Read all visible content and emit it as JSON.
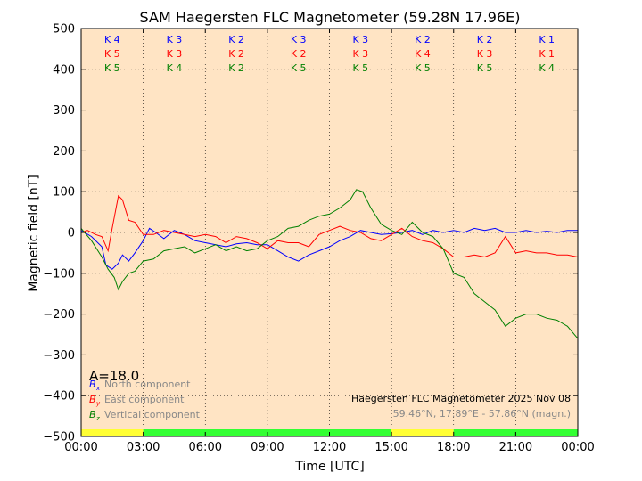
{
  "chart_data": {
    "type": "line",
    "title": "SAM Haegersten FLC Magnetometer (59.28N 17.96E)",
    "xlabel": "Time [UTC]",
    "ylabel": "Magnetic field [nT]",
    "xlim": [
      0,
      24
    ],
    "ylim": [
      -500,
      500
    ],
    "grid": true,
    "x_ticks": [
      0,
      3,
      6,
      9,
      12,
      15,
      18,
      21,
      24
    ],
    "x_tick_labels": [
      "00:00",
      "03:00",
      "06:00",
      "09:00",
      "12:00",
      "15:00",
      "18:00",
      "21:00",
      "00:00"
    ],
    "y_ticks": [
      -500,
      -400,
      -300,
      -200,
      -100,
      0,
      100,
      200,
      300,
      400,
      500
    ],
    "y_tick_labels": [
      "−500",
      "−400",
      "−300",
      "−200",
      "−100",
      "0",
      "100",
      "200",
      "300",
      "400",
      "500"
    ],
    "k_indices": [
      {
        "start": 0,
        "north": "K 4",
        "east": "K 5",
        "vertical": "K 5"
      },
      {
        "start": 3,
        "north": "K 3",
        "east": "K 3",
        "vertical": "K 4"
      },
      {
        "start": 6,
        "north": "K 2",
        "east": "K 2",
        "vertical": "K 2"
      },
      {
        "start": 9,
        "north": "K 3",
        "east": "K 2",
        "vertical": "K 5"
      },
      {
        "start": 12,
        "north": "K 3",
        "east": "K 3",
        "vertical": "K 5"
      },
      {
        "start": 15,
        "north": "K 2",
        "east": "K 4",
        "vertical": "K 5"
      },
      {
        "start": 18,
        "north": "K 2",
        "east": "K 3",
        "vertical": "K 5"
      },
      {
        "start": 21,
        "north": "K 1",
        "east": "K 1",
        "vertical": "K 4"
      }
    ],
    "a_index_label": "A=18.0",
    "activity_bar": [
      {
        "from": 0,
        "to": 3,
        "color": "#ffff33"
      },
      {
        "from": 3,
        "to": 15,
        "color": "#33ff33"
      },
      {
        "from": 15,
        "to": 18,
        "color": "#ffff33"
      },
      {
        "from": 18,
        "to": 24,
        "color": "#33ff33"
      }
    ],
    "legend": {
      "position": "bottom-left",
      "entries": [
        {
          "symbol": "B",
          "subscript": "x",
          "label": "North component",
          "color": "#0000ff"
        },
        {
          "symbol": "B",
          "subscript": "y",
          "label": "East component",
          "color": "#ff0000"
        },
        {
          "symbol": "B",
          "subscript": "z",
          "label": "Vertical component",
          "color": "#008000"
        }
      ]
    },
    "annotation": {
      "line1": "Haegersten FLC Magnetometer 2025 Nov 08",
      "line2": "59.46°N, 17.89°E - 57.86°N (magn.)"
    },
    "series": [
      {
        "name": "North component",
        "color": "#0000ff",
        "x": [
          0,
          0.5,
          1,
          1.2,
          1.5,
          1.8,
          2,
          2.3,
          2.6,
          3,
          3.3,
          3.6,
          4,
          4.5,
          5,
          5.5,
          6,
          6.5,
          7,
          7.5,
          8,
          8.5,
          9,
          9.5,
          10,
          10.5,
          11,
          11.5,
          12,
          12.5,
          13,
          13.5,
          14,
          14.5,
          15,
          15.5,
          16,
          16.5,
          17,
          17.5,
          18,
          18.5,
          19,
          19.5,
          20,
          20.5,
          21,
          21.5,
          22,
          22.5,
          23,
          23.5,
          24
        ],
        "values": [
          5,
          -10,
          -35,
          -80,
          -90,
          -75,
          -55,
          -70,
          -50,
          -20,
          10,
          0,
          -15,
          5,
          -5,
          -20,
          -25,
          -30,
          -35,
          -28,
          -25,
          -30,
          -30,
          -45,
          -60,
          -70,
          -55,
          -45,
          -35,
          -20,
          -10,
          5,
          0,
          -5,
          -3,
          0,
          5,
          -5,
          5,
          0,
          5,
          0,
          10,
          5,
          10,
          0,
          0,
          5,
          0,
          3,
          0,
          5,
          5
        ]
      },
      {
        "name": "East component",
        "color": "#ff0000",
        "x": [
          0,
          0.3,
          0.7,
          1,
          1.3,
          1.5,
          1.8,
          2,
          2.3,
          2.6,
          3,
          3.5,
          4,
          4.5,
          5,
          5.5,
          6,
          6.5,
          7,
          7.5,
          8,
          8.5,
          9,
          9.5,
          10,
          10.5,
          11,
          11.5,
          12,
          12.5,
          13,
          13.5,
          14,
          14.5,
          15,
          15.5,
          16,
          16.5,
          17,
          17.5,
          18,
          18.5,
          19,
          19.5,
          20,
          20.5,
          21,
          21.5,
          22,
          22.5,
          23,
          23.5,
          24
        ],
        "values": [
          0,
          5,
          -5,
          -10,
          -45,
          10,
          90,
          80,
          30,
          25,
          -5,
          -5,
          5,
          0,
          -5,
          -10,
          -5,
          -10,
          -25,
          -10,
          -15,
          -25,
          -40,
          -20,
          -25,
          -25,
          -35,
          -5,
          5,
          15,
          5,
          0,
          -15,
          -20,
          -5,
          10,
          -10,
          -20,
          -25,
          -40,
          -60,
          -60,
          -55,
          -60,
          -50,
          -10,
          -50,
          -45,
          -50,
          -50,
          -55,
          -55,
          -60
        ]
      },
      {
        "name": "Vertical component",
        "color": "#008000",
        "x": [
          0,
          0.5,
          1,
          1.3,
          1.6,
          1.8,
          2,
          2.3,
          2.6,
          3,
          3.5,
          4,
          4.5,
          5,
          5.5,
          6,
          6.5,
          7,
          7.5,
          8,
          8.5,
          9,
          9.5,
          10,
          10.5,
          11,
          11.5,
          12,
          12.5,
          13,
          13.3,
          13.6,
          14,
          14.5,
          15,
          15.5,
          16,
          16.5,
          17,
          17.5,
          18,
          18.5,
          19,
          19.5,
          20,
          20.5,
          21,
          21.5,
          22,
          22.5,
          23,
          23.5,
          24
        ],
        "values": [
          10,
          -20,
          -60,
          -90,
          -110,
          -140,
          -120,
          -100,
          -95,
          -70,
          -65,
          -45,
          -40,
          -35,
          -50,
          -40,
          -30,
          -45,
          -35,
          -45,
          -40,
          -20,
          -10,
          10,
          15,
          30,
          40,
          45,
          60,
          80,
          105,
          100,
          60,
          20,
          5,
          -5,
          25,
          0,
          -10,
          -40,
          -100,
          -110,
          -150,
          -170,
          -190,
          -230,
          -210,
          -200,
          -200,
          -210,
          -215,
          -230,
          -260
        ]
      }
    ]
  }
}
